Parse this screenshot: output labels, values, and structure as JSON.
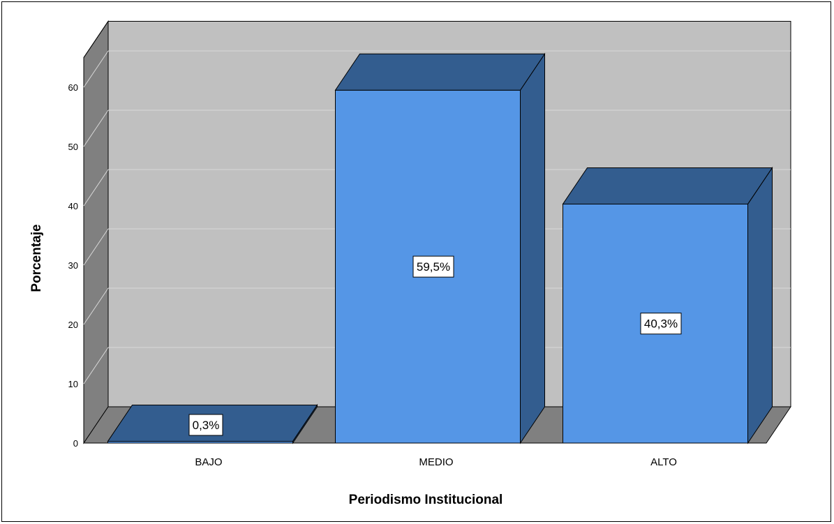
{
  "chart_data": {
    "type": "bar",
    "categories": [
      "BAJO",
      "MEDIO",
      "ALTO"
    ],
    "values": [
      0.3,
      59.5,
      40.3
    ],
    "data_labels": [
      "0,3%",
      "59,5%",
      "40,3%"
    ],
    "xlabel": "Periodismo Institucional",
    "ylabel": "Porcentaje",
    "ylim": [
      0,
      65
    ],
    "yticks": [
      0,
      10,
      20,
      30,
      40,
      50,
      60
    ],
    "grid": true,
    "legend": "none"
  },
  "colors": {
    "bar_front": "#5596e6",
    "bar_side": "#335d8f",
    "bar_top": "#335d8f",
    "wall": "#c0c0c0",
    "side_wall": "#808080",
    "floor": "#808080",
    "gridline": "#d8d8d8"
  }
}
